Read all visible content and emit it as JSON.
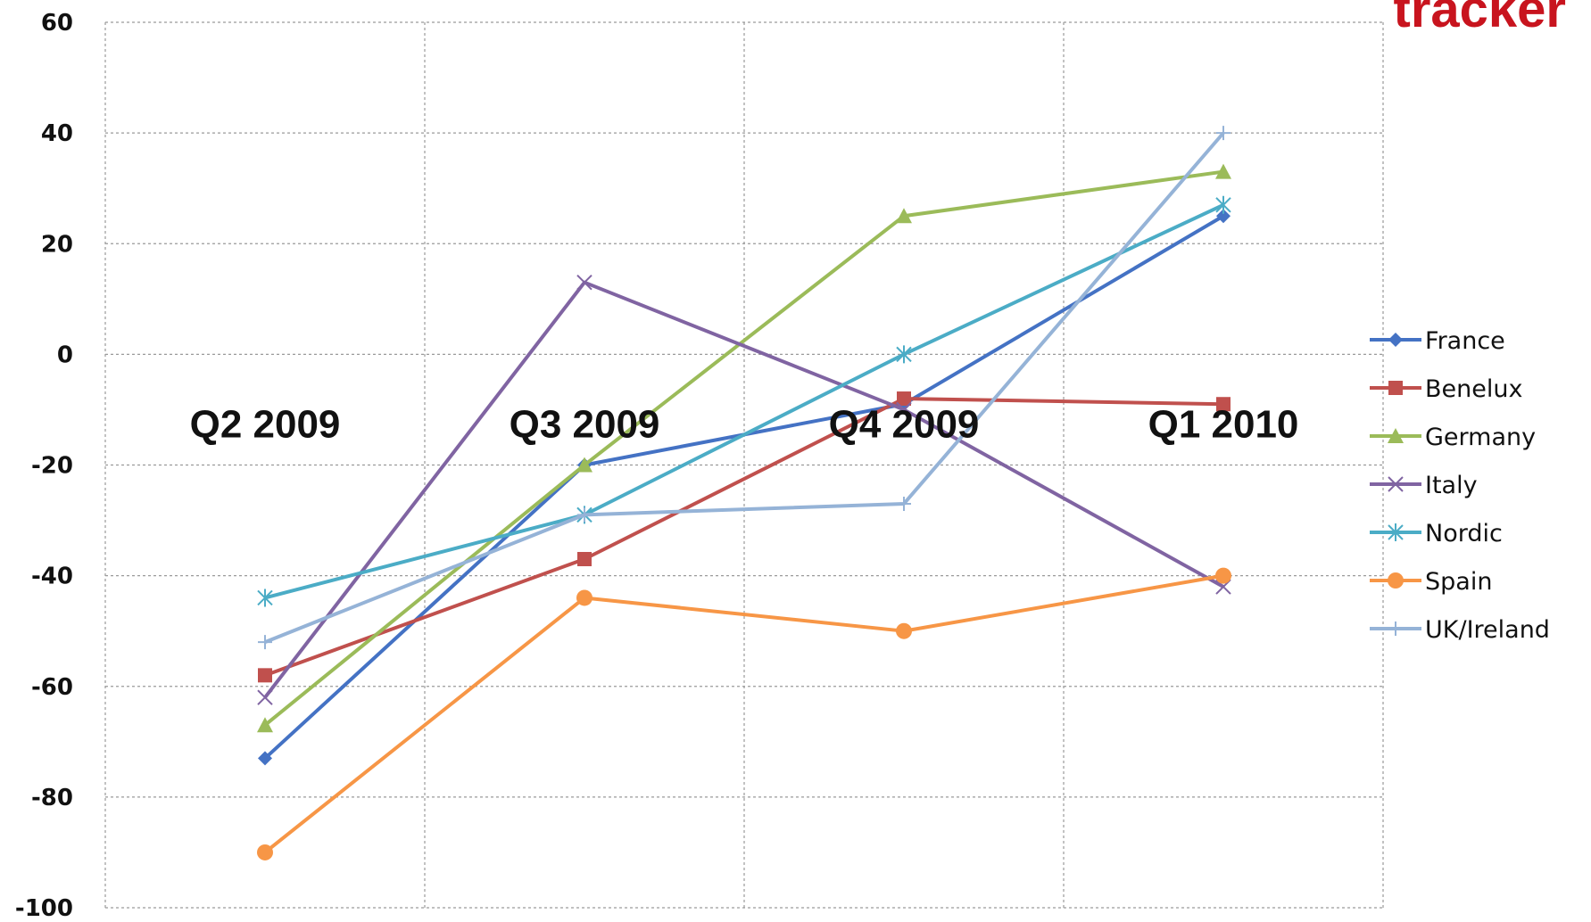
{
  "logo_text": "tracker",
  "chart_data": {
    "type": "line",
    "categories": [
      "Q2 2009",
      "Q3 2009",
      "Q4 2009",
      "Q1 2010"
    ],
    "ylim": [
      -100,
      60
    ],
    "yticks": [
      -100,
      -80,
      -60,
      -40,
      -20,
      0,
      20,
      40,
      60
    ],
    "grid": true,
    "legend_position": "right",
    "series": [
      {
        "name": "France",
        "values": [
          -73,
          -20,
          -9,
          25
        ],
        "color": "#4472c4",
        "marker": "diamond"
      },
      {
        "name": "Benelux",
        "values": [
          -58,
          -37,
          -8,
          -9
        ],
        "color": "#c0504d",
        "marker": "square"
      },
      {
        "name": "Germany",
        "values": [
          -67,
          -20,
          25,
          33
        ],
        "color": "#9bbb59",
        "marker": "triangle"
      },
      {
        "name": "Italy",
        "values": [
          -62,
          13,
          -10,
          -42
        ],
        "color": "#8064a2",
        "marker": "x"
      },
      {
        "name": "Nordic",
        "values": [
          -44,
          -29,
          0,
          27
        ],
        "color": "#4bacc6",
        "marker": "star"
      },
      {
        "name": "Spain",
        "values": [
          -90,
          -44,
          -50,
          -40
        ],
        "color": "#f79646",
        "marker": "circle"
      },
      {
        "name": "UK/Ireland",
        "values": [
          -52,
          -29,
          -27,
          40
        ],
        "color": "#95b3d7",
        "marker": "plus"
      }
    ]
  }
}
